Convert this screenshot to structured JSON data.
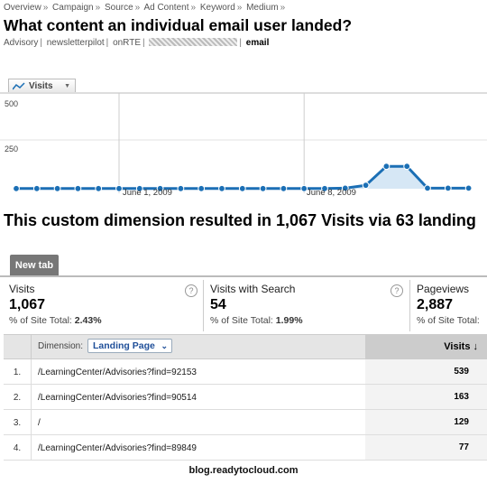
{
  "breadcrumb": [
    "Overview",
    "Campaign",
    "Source",
    "Ad Content",
    "Keyword",
    "Medium"
  ],
  "breadcrumb_sep": "»",
  "title": "What content an individual email user landed?",
  "subtitle_segments": [
    "Advisory",
    "newsletterpilot",
    "onRTE"
  ],
  "subtitle_last": "email",
  "graph_tab": {
    "label": "Visits",
    "icon": "line-chart-icon"
  },
  "chart_data": {
    "type": "area",
    "series": [
      {
        "name": "Visits",
        "values": [
          1,
          1,
          1,
          1,
          1,
          1,
          1,
          1,
          1,
          1,
          1,
          1,
          1,
          1,
          1,
          1,
          3,
          18,
          117,
          117,
          3,
          3,
          3
        ]
      }
    ],
    "yticks": [
      "500",
      "250"
    ],
    "ylim": [
      0,
      500
    ],
    "date_labels": [
      "June 1, 2009",
      "June 8, 2009"
    ],
    "grid": true,
    "colors": {
      "line": "#1b6fb5",
      "fill": "#d6e7f5"
    }
  },
  "summary_text": "This custom dimension resulted in 1,067 Visits via 63 landing",
  "tab": {
    "label": "New tab"
  },
  "metrics": [
    {
      "label": "Visits",
      "value": "1,067",
      "pct_label": "% of Site Total:",
      "pct": "2.43%"
    },
    {
      "label": "Visits with Search",
      "value": "54",
      "pct_label": "% of Site Total:",
      "pct": "1.99%"
    },
    {
      "label": "Pageviews",
      "value": "2,887",
      "pct_label": "% of Site Total:",
      "pct": ""
    }
  ],
  "help_glyph": "?",
  "table": {
    "dimension_label": "Dimension:",
    "dimension_value": "Landing Page",
    "metric_header": "Visits",
    "rows": [
      {
        "n": "1.",
        "page": "/LearningCenter/Advisories?find=92153",
        "visits": "539"
      },
      {
        "n": "2.",
        "page": "/LearningCenter/Advisories?find=90514",
        "visits": "163"
      },
      {
        "n": "3.",
        "page": "/",
        "visits": "129"
      },
      {
        "n": "4.",
        "page": "/LearningCenter/Advisories?find=89849",
        "visits": "77"
      }
    ]
  },
  "footer": "blog.readytocloud.com"
}
